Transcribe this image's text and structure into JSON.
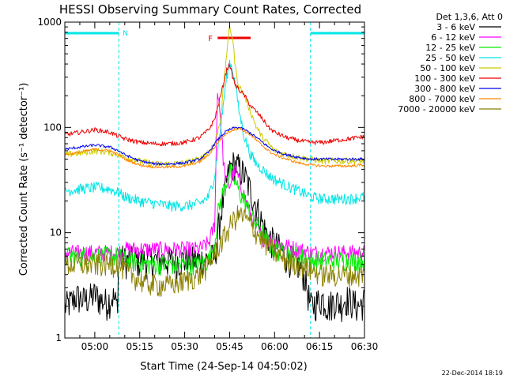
{
  "chart_data": {
    "type": "line",
    "title": "HESSI Observing Summary Count Rates, Corrected",
    "xlabel": "Start Time (24-Sep-14 04:50:02)",
    "ylabel": "Corrected Count Rate (s⁻¹ detector⁻¹)",
    "xlim": [
      "04:50:02",
      "06:30:00"
    ],
    "ylim": [
      1,
      1000
    ],
    "yscale": "log",
    "x_tick_labels": [
      "05:00",
      "05:15",
      "05:30",
      "05:45",
      "06:00",
      "06:15",
      "06:30"
    ],
    "x_tick_minutes": [
      10,
      25,
      40,
      55,
      70,
      85,
      100
    ],
    "y_tick_labels": [
      "1",
      "10",
      "100",
      "1000"
    ],
    "y_tick_values": [
      1,
      10,
      100,
      1000
    ],
    "legend_position": "right",
    "legend_header": "Det 1,3,6, Att 0",
    "footer_date": "22-Dec-2014 18:19",
    "annotations": {
      "night_label": "N",
      "night_intervals": [
        [
          0,
          18
        ],
        [
          82,
          100
        ]
      ],
      "flare_label": "F",
      "flare_interval": [
        51,
        62
      ]
    },
    "series": [
      {
        "name": "3 - 6 keV",
        "color": "#000000",
        "x": [
          0,
          2,
          4,
          6,
          8,
          10,
          12,
          14,
          16,
          17.5,
          18,
          20,
          25,
          30,
          35,
          40,
          45,
          48,
          50,
          52,
          54,
          55,
          56,
          58,
          60,
          62,
          64,
          66,
          68,
          70,
          72,
          74,
          78,
          80,
          82,
          84,
          86,
          88,
          90,
          92,
          94,
          96,
          98,
          100
        ],
        "y": [
          2.0,
          2.2,
          2.5,
          2.3,
          2.4,
          2.6,
          2.3,
          2.2,
          2.5,
          2.0,
          6,
          5.5,
          5.5,
          5.5,
          5.5,
          5.5,
          5.5,
          5.6,
          6,
          15,
          30,
          40,
          45,
          42,
          35,
          25,
          18,
          12,
          9,
          8,
          7,
          6,
          5,
          4,
          2.0,
          2.2,
          2.4,
          2.0,
          2.3,
          2.1,
          2.4,
          2.2,
          2.0,
          2.3
        ]
      },
      {
        "name": "6 - 12 keV",
        "color": "#ff00ff",
        "x": [
          0,
          5,
          10,
          15,
          18,
          20,
          25,
          30,
          35,
          40,
          45,
          48,
          50,
          51,
          52,
          53,
          54,
          55,
          56,
          57,
          58,
          60,
          62,
          64,
          66,
          68,
          70,
          74,
          78,
          82,
          86,
          90,
          95,
          100
        ],
        "y": [
          6.5,
          6.5,
          6.5,
          6.5,
          6.5,
          7,
          7,
          7,
          7,
          7,
          7,
          8,
          12,
          250,
          120,
          45,
          30,
          28,
          35,
          40,
          32,
          22,
          15,
          11,
          9,
          8.5,
          8,
          7.5,
          7,
          6.5,
          6.5,
          6.5,
          6.5,
          6.5
        ]
      },
      {
        "name": "12 - 25 keV",
        "color": "#00ee00",
        "x": [
          0,
          5,
          10,
          15,
          18,
          20,
          25,
          30,
          35,
          40,
          45,
          48,
          50,
          51,
          52,
          53,
          54,
          55,
          56,
          57,
          58,
          60,
          62,
          64,
          66,
          68,
          70,
          74,
          78,
          82,
          86,
          90,
          95,
          100
        ],
        "y": [
          6,
          6,
          6,
          6,
          6,
          5.5,
          5.2,
          5.0,
          5.0,
          5.0,
          5.0,
          5.5,
          8,
          15,
          20,
          25,
          30,
          38,
          35,
          30,
          25,
          20,
          15,
          12,
          10,
          8,
          7,
          6.5,
          6,
          5.5,
          5.5,
          5.5,
          5.5,
          5.5
        ]
      },
      {
        "name": "25 - 50 keV",
        "color": "#00e5e5",
        "x": [
          0,
          5,
          10,
          15,
          18,
          20,
          25,
          30,
          35,
          40,
          45,
          48,
          50,
          52,
          54,
          55,
          56,
          57,
          58,
          60,
          62,
          64,
          66,
          68,
          70,
          74,
          78,
          82,
          86,
          90,
          95,
          100
        ],
        "y": [
          25,
          26,
          27,
          26,
          24,
          22,
          20,
          19,
          18,
          18,
          19,
          22,
          35,
          100,
          300,
          420,
          350,
          250,
          150,
          80,
          55,
          45,
          40,
          35,
          32,
          28,
          25,
          22,
          21,
          21,
          21,
          22
        ]
      },
      {
        "name": "50 - 100 keV",
        "color": "#cccc00",
        "x": [
          0,
          5,
          10,
          15,
          18,
          20,
          25,
          30,
          35,
          40,
          45,
          48,
          50,
          52,
          54,
          55,
          56,
          57,
          58,
          60,
          62,
          64,
          66,
          68,
          70,
          74,
          78,
          82,
          86,
          90,
          95,
          100
        ],
        "y": [
          55,
          57,
          60,
          58,
          55,
          52,
          48,
          45,
          45,
          46,
          50,
          60,
          70,
          120,
          500,
          900,
          700,
          350,
          250,
          200,
          140,
          100,
          80,
          70,
          60,
          55,
          52,
          50,
          48,
          48,
          48,
          48
        ]
      },
      {
        "name": "100 - 300 keV",
        "color": "#ee0000",
        "x": [
          0,
          5,
          10,
          15,
          18,
          20,
          25,
          30,
          35,
          40,
          45,
          48,
          50,
          52,
          54,
          55,
          56,
          57,
          58,
          60,
          62,
          64,
          66,
          68,
          70,
          74,
          78,
          82,
          86,
          90,
          95,
          100
        ],
        "y": [
          85,
          90,
          95,
          90,
          82,
          78,
          72,
          70,
          70,
          72,
          80,
          95,
          120,
          200,
          350,
          400,
          300,
          250,
          230,
          200,
          160,
          140,
          120,
          100,
          90,
          80,
          75,
          72,
          72,
          75,
          78,
          82
        ]
      },
      {
        "name": "300 - 800 keV",
        "color": "#0000ee",
        "x": [
          0,
          5,
          10,
          15,
          18,
          20,
          25,
          30,
          35,
          40,
          45,
          48,
          50,
          52,
          54,
          56,
          58,
          60,
          62,
          64,
          66,
          68,
          70,
          74,
          78,
          82,
          86,
          90,
          95,
          100
        ],
        "y": [
          62,
          65,
          68,
          65,
          60,
          55,
          48,
          45,
          45,
          46,
          50,
          58,
          70,
          82,
          92,
          98,
          100,
          95,
          88,
          80,
          72,
          65,
          60,
          55,
          52,
          50,
          50,
          50,
          50,
          50
        ]
      },
      {
        "name": "800 - 7000 keV",
        "color": "#ff8800",
        "x": [
          0,
          5,
          10,
          15,
          18,
          20,
          25,
          30,
          35,
          40,
          45,
          48,
          50,
          52,
          54,
          56,
          58,
          60,
          62,
          64,
          66,
          68,
          70,
          74,
          78,
          82,
          86,
          90,
          95,
          100
        ],
        "y": [
          55,
          58,
          62,
          60,
          55,
          50,
          44,
          42,
          42,
          43,
          47,
          55,
          65,
          78,
          88,
          95,
          98,
          92,
          85,
          75,
          67,
          60,
          55,
          50,
          46,
          44,
          43,
          43,
          43,
          44
        ]
      },
      {
        "name": "7000 - 20000 keV",
        "color": "#8b8000",
        "x": [
          0,
          5,
          10,
          15,
          18,
          20,
          25,
          30,
          35,
          40,
          45,
          48,
          50,
          52,
          54,
          56,
          58,
          60,
          62,
          64,
          66,
          68,
          70,
          74,
          78,
          82,
          86,
          90,
          95,
          100
        ],
        "y": [
          5,
          5,
          5,
          5,
          5,
          4.5,
          3.5,
          3.2,
          3.2,
          3.5,
          4,
          5,
          6.5,
          8,
          10,
          13,
          15,
          14,
          12,
          10,
          8.5,
          7.5,
          6.5,
          5.5,
          5,
          4.5,
          4,
          4,
          4,
          4
        ]
      }
    ]
  }
}
